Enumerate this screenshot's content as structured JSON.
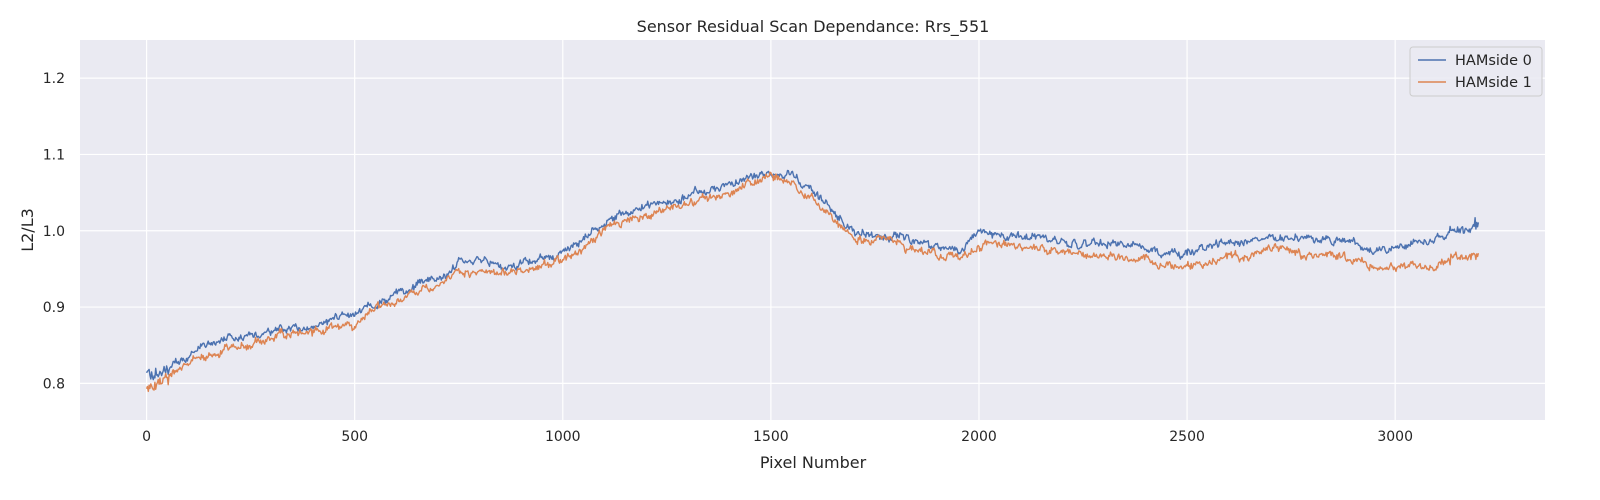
{
  "chart_data": {
    "type": "line",
    "title": "Sensor Residual Scan Dependance: Rrs_551",
    "xlabel": "Pixel Number",
    "ylabel": "L2/L3",
    "xlim": [
      -160,
      3360
    ],
    "ylim": [
      0.752,
      1.25
    ],
    "xticks": [
      0,
      500,
      1000,
      1500,
      2000,
      2500,
      3000
    ],
    "yticks": [
      0.8,
      0.9,
      1.0,
      1.1,
      1.2
    ],
    "xtick_labels": [
      "0",
      "500",
      "1000",
      "1500",
      "2000",
      "2500",
      "3000"
    ],
    "ytick_labels": [
      "0.8",
      "0.9",
      "1.0",
      "1.1",
      "1.2"
    ],
    "grid": true,
    "legend_position": "top-right",
    "x": [
      0,
      50,
      100,
      150,
      200,
      250,
      300,
      350,
      400,
      450,
      500,
      550,
      600,
      650,
      700,
      750,
      800,
      850,
      900,
      950,
      1000,
      1050,
      1100,
      1150,
      1200,
      1250,
      1300,
      1350,
      1400,
      1450,
      1500,
      1550,
      1600,
      1650,
      1700,
      1750,
      1800,
      1850,
      1900,
      1950,
      2000,
      2050,
      2100,
      2150,
      2200,
      2250,
      2300,
      2350,
      2400,
      2450,
      2500,
      2550,
      2600,
      2650,
      2700,
      2750,
      2800,
      2850,
      2900,
      2950,
      3000,
      3050,
      3100,
      3150,
      3200
    ],
    "series": [
      {
        "name": "HAMside 0",
        "color": "#4c72b0",
        "values": [
          0.81,
          0.82,
          0.838,
          0.85,
          0.858,
          0.864,
          0.87,
          0.875,
          0.877,
          0.883,
          0.892,
          0.903,
          0.917,
          0.928,
          0.94,
          0.96,
          0.958,
          0.955,
          0.957,
          0.963,
          0.968,
          0.99,
          1.01,
          1.022,
          1.03,
          1.038,
          1.045,
          1.052,
          1.06,
          1.07,
          1.079,
          1.075,
          1.055,
          1.025,
          0.998,
          0.995,
          0.993,
          0.985,
          0.98,
          0.975,
          0.995,
          0.997,
          0.993,
          0.99,
          0.985,
          0.983,
          0.987,
          0.983,
          0.975,
          0.97,
          0.97,
          0.978,
          0.985,
          0.988,
          0.992,
          0.99,
          0.991,
          0.988,
          0.988,
          0.975,
          0.975,
          0.985,
          0.99,
          1.0,
          1.005
        ]
      },
      {
        "name": "HAMside 1",
        "color": "#dd8452",
        "values": [
          0.795,
          0.808,
          0.825,
          0.835,
          0.843,
          0.85,
          0.858,
          0.864,
          0.867,
          0.873,
          0.88,
          0.892,
          0.907,
          0.918,
          0.928,
          0.95,
          0.947,
          0.945,
          0.948,
          0.955,
          0.958,
          0.98,
          1.0,
          1.013,
          1.022,
          1.03,
          1.037,
          1.044,
          1.053,
          1.063,
          1.072,
          1.065,
          1.045,
          1.015,
          0.99,
          0.987,
          0.984,
          0.975,
          0.97,
          0.965,
          0.98,
          0.985,
          0.982,
          0.978,
          0.97,
          0.97,
          0.97,
          0.965,
          0.96,
          0.956,
          0.955,
          0.96,
          0.965,
          0.967,
          0.975,
          0.97,
          0.968,
          0.966,
          0.962,
          0.955,
          0.952,
          0.955,
          0.958,
          0.965,
          0.968
        ]
      }
    ]
  }
}
